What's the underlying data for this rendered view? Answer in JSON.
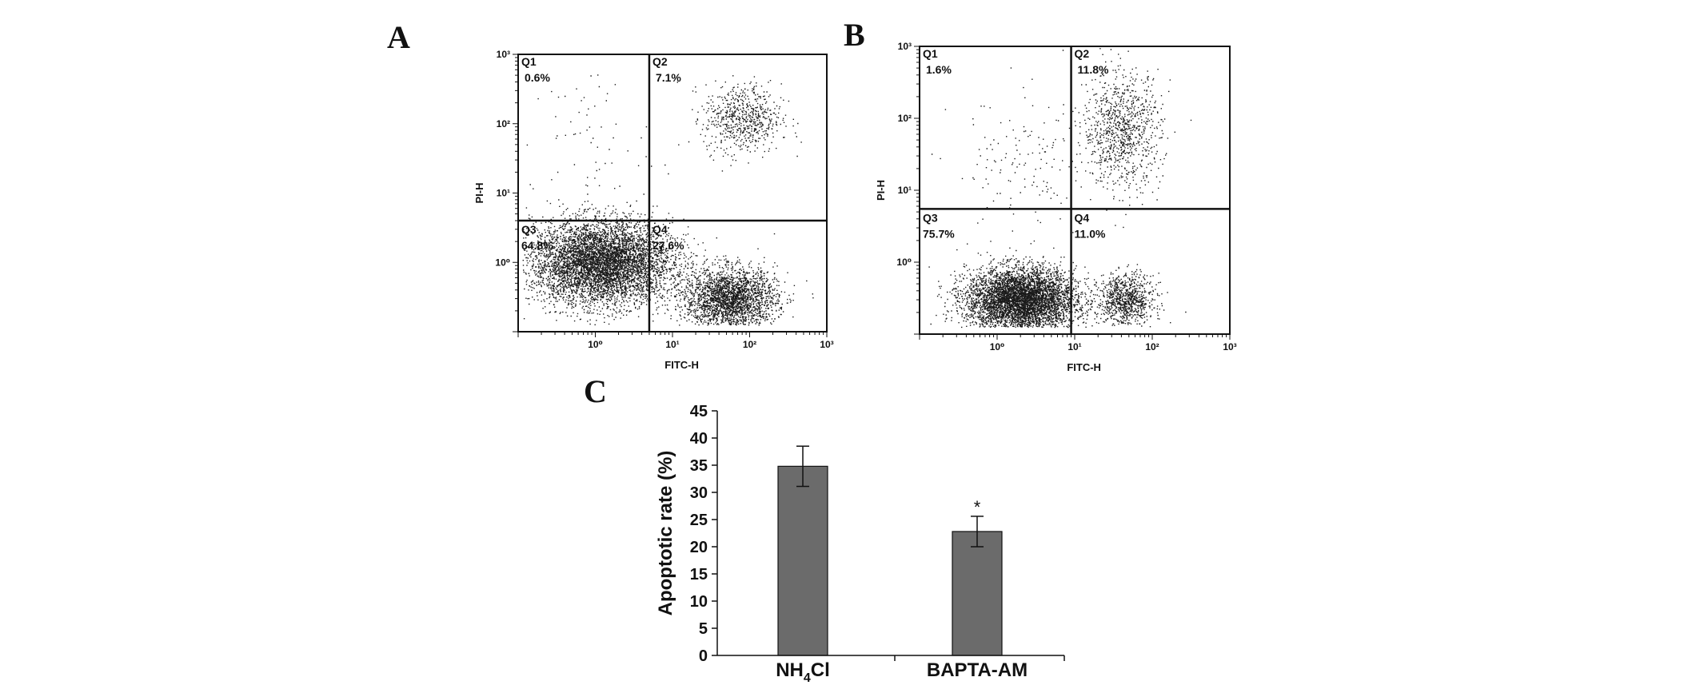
{
  "figure": {
    "panel_letters": {
      "a": "A",
      "b": "B",
      "c": "C"
    },
    "colors": {
      "ink": "#111111",
      "bar_fill": "#6b6b6b",
      "dots": "#1a1a1a"
    }
  },
  "chart_data": [
    {
      "type": "scatter",
      "panel": "A",
      "xlabel": "FITC-H",
      "ylabel": "PI-H",
      "x_scale": "log",
      "y_scale": "log",
      "xlim": [
        0.1,
        1000
      ],
      "ylim": [
        0.1,
        1000
      ],
      "x_tick_labels": [
        "10⁰",
        "10¹",
        "10²",
        "10³"
      ],
      "y_tick_labels": [
        "10⁰",
        "10¹",
        "10²",
        "10³"
      ],
      "gate": {
        "x": 5,
        "y": 4
      },
      "quadrants": [
        {
          "name": "Q1",
          "percent": "0.6%"
        },
        {
          "name": "Q2",
          "percent": "7.1%"
        },
        {
          "name": "Q3",
          "percent": "64.8%"
        },
        {
          "name": "Q4",
          "percent": "27.6%"
        }
      ],
      "populations": [
        {
          "x": 1.2,
          "y": 1.0,
          "spread_x": 0.45,
          "spread_y": 0.3,
          "weight": 0.648
        },
        {
          "x": 55,
          "y": 0.3,
          "spread_x": 0.3,
          "spread_y": 0.22,
          "weight": 0.276
        },
        {
          "x": 80,
          "y": 120,
          "spread_x": 0.25,
          "spread_y": 0.25,
          "weight": 0.071
        },
        {
          "x": 0.8,
          "y": 60,
          "spread_x": 0.4,
          "spread_y": 0.6,
          "weight": 0.006
        }
      ]
    },
    {
      "type": "scatter",
      "panel": "B",
      "xlabel": "FITC-H",
      "ylabel": "PI-H",
      "x_scale": "log",
      "y_scale": "log",
      "xlim": [
        0.1,
        1000
      ],
      "ylim": [
        0.1,
        1000
      ],
      "x_tick_labels": [
        "10⁰",
        "10¹",
        "10²",
        "10³"
      ],
      "y_tick_labels": [
        "10⁰",
        "10¹",
        "10²",
        "10³"
      ],
      "gate": {
        "x": 9,
        "y": 5.5
      },
      "quadrants": [
        {
          "name": "Q1",
          "percent": "1.6%"
        },
        {
          "name": "Q2",
          "percent": "11.8%"
        },
        {
          "name": "Q3",
          "percent": "75.7%"
        },
        {
          "name": "Q4",
          "percent": "11.0%"
        }
      ],
      "populations": [
        {
          "x": 2.0,
          "y": 0.3,
          "spread_x": 0.35,
          "spread_y": 0.22,
          "weight": 0.757
        },
        {
          "x": 45,
          "y": 0.3,
          "spread_x": 0.18,
          "spread_y": 0.18,
          "weight": 0.11
        },
        {
          "x": 40,
          "y": 70,
          "spread_x": 0.25,
          "spread_y": 0.4,
          "weight": 0.118
        },
        {
          "x": 2.0,
          "y": 20,
          "spread_x": 0.45,
          "spread_y": 0.5,
          "weight": 0.016
        }
      ]
    },
    {
      "type": "bar",
      "panel": "C",
      "categories": [
        "NH4Cl",
        "BAPTA-AM"
      ],
      "category_labels": [
        {
          "main": "NH",
          "sub": "4",
          "rest": "Cl"
        },
        {
          "main": "BAPTA-AM",
          "sub": "",
          "rest": ""
        }
      ],
      "values": [
        34.8,
        22.8
      ],
      "errors": [
        3.7,
        2.8
      ],
      "significance": [
        "",
        "*"
      ],
      "ylabel": "Apoptotic  rate (%)",
      "xlabel": "",
      "ylim": [
        0,
        45
      ],
      "yticks": [
        0,
        5,
        10,
        15,
        20,
        25,
        30,
        35,
        40,
        45
      ],
      "grid": false
    }
  ]
}
